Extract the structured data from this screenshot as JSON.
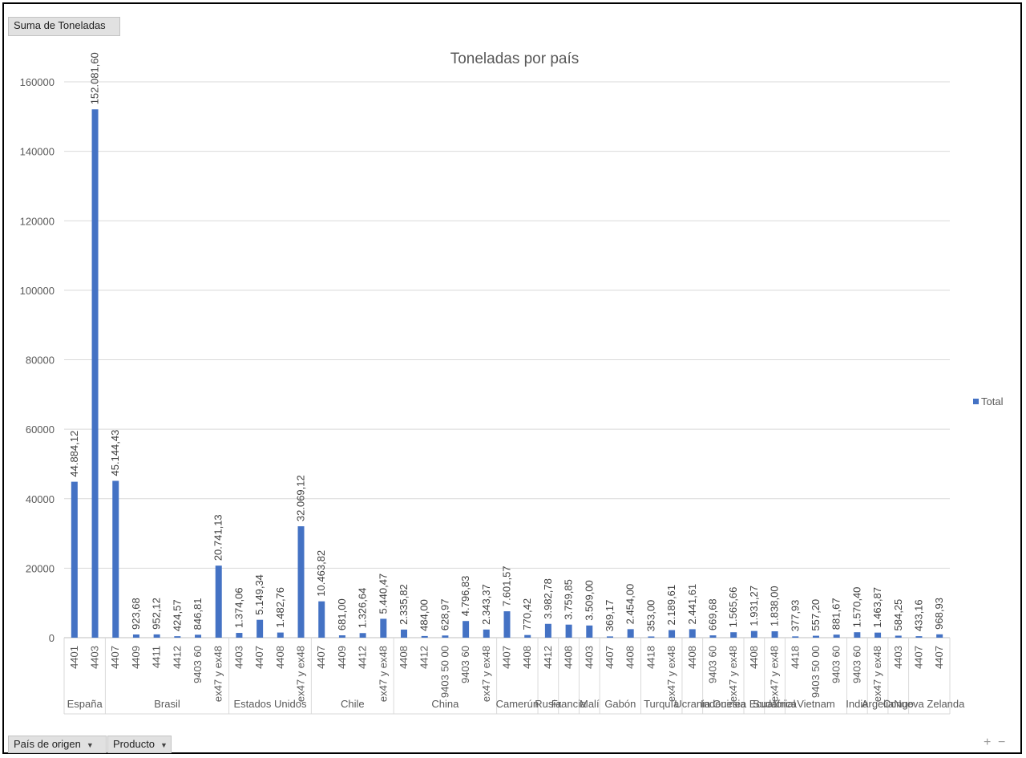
{
  "value_field_button": "Suma de Toneladas",
  "axis_field_buttons": [
    "País de origen",
    "Producto"
  ],
  "zoom_controls": {
    "plus": "+",
    "minus": "−"
  },
  "colors": {
    "bar": "#4472c4",
    "grid": "#d9d9d9",
    "text": "#595959"
  },
  "chart_data": {
    "type": "bar",
    "title": "Toneladas por país",
    "xlabel": "",
    "ylabel": "",
    "ylim": [
      0,
      160000
    ],
    "yticks": [
      0,
      20000,
      40000,
      60000,
      80000,
      100000,
      120000,
      140000,
      160000
    ],
    "grid": true,
    "legend": {
      "position": "right",
      "entries": [
        "Total"
      ]
    },
    "groups": [
      {
        "name": "España",
        "items": [
          {
            "product": "4401",
            "value": 44884.12,
            "label": "44.884,12"
          },
          {
            "product": "4403",
            "value": 152081.6,
            "label": "152.081,60"
          }
        ]
      },
      {
        "name": "Brasil",
        "items": [
          {
            "product": "4407",
            "value": 45144.43,
            "label": "45.144,43"
          },
          {
            "product": "4409",
            "value": 923.68,
            "label": "923,68"
          },
          {
            "product": "4411",
            "value": 952.12,
            "label": "952,12"
          },
          {
            "product": "4412",
            "value": 424.57,
            "label": "424,57"
          },
          {
            "product": "9403 60",
            "value": 846.81,
            "label": "846,81"
          },
          {
            "product": "ex47 y ex48",
            "value": 20741.13,
            "label": "20.741,13"
          }
        ]
      },
      {
        "name": "Estados Unidos",
        "items": [
          {
            "product": "4403",
            "value": 1374.06,
            "label": "1.374,06"
          },
          {
            "product": "4407",
            "value": 5149.34,
            "label": "5.149,34"
          },
          {
            "product": "4408",
            "value": 1482.76,
            "label": "1.482,76"
          },
          {
            "product": "ex47 y ex48",
            "value": 32069.12,
            "label": "32.069,12"
          }
        ]
      },
      {
        "name": "Chile",
        "items": [
          {
            "product": "4407",
            "value": 10463.82,
            "label": "10.463,82"
          },
          {
            "product": "4409",
            "value": 681.0,
            "label": "681,00"
          },
          {
            "product": "4412",
            "value": 1326.64,
            "label": "1.326,64"
          },
          {
            "product": "ex47 y ex48",
            "value": 5440.47,
            "label": "5.440,47"
          }
        ]
      },
      {
        "name": "China",
        "items": [
          {
            "product": "4408",
            "value": 2335.82,
            "label": "2.335,82"
          },
          {
            "product": "4412",
            "value": 484.0,
            "label": "484,00"
          },
          {
            "product": "9403 50 00",
            "value": 628.97,
            "label": "628,97"
          },
          {
            "product": "9403 60",
            "value": 4796.83,
            "label": "4.796,83"
          },
          {
            "product": "ex47 y ex48",
            "value": 2343.37,
            "label": "2.343,37"
          }
        ]
      },
      {
        "name": "Camerún",
        "items": [
          {
            "product": "4407",
            "value": 7601.57,
            "label": "7.601,57"
          },
          {
            "product": "4408",
            "value": 770.42,
            "label": "770,42"
          }
        ]
      },
      {
        "name": "Rusia",
        "items": [
          {
            "product": "4412",
            "value": 3982.78,
            "label": "3.982,78"
          }
        ]
      },
      {
        "name": "Francia",
        "items": [
          {
            "product": "4408",
            "value": 3759.85,
            "label": "3.759,85"
          }
        ]
      },
      {
        "name": "Malí",
        "items": [
          {
            "product": "4403",
            "value": 3509.0,
            "label": "3.509,00"
          }
        ]
      },
      {
        "name": "Gabón",
        "items": [
          {
            "product": "4407",
            "value": 369.17,
            "label": "369,17"
          },
          {
            "product": "4408",
            "value": 2454.0,
            "label": "2.454,00"
          }
        ]
      },
      {
        "name": "Turquía",
        "items": [
          {
            "product": "4418",
            "value": 353.0,
            "label": "353,00"
          },
          {
            "product": "ex47 y ex48",
            "value": 2189.61,
            "label": "2.189,61"
          }
        ]
      },
      {
        "name": "Ucrania",
        "items": [
          {
            "product": "4408",
            "value": 2441.61,
            "label": "2.441,61"
          }
        ]
      },
      {
        "name": "Indonesia",
        "items": [
          {
            "product": "9403 60",
            "value": 669.68,
            "label": "669,68"
          },
          {
            "product": "ex47 y ex48",
            "value": 1565.66,
            "label": "1.565,66"
          }
        ]
      },
      {
        "name": "Guinea Ecuatorial",
        "items": [
          {
            "product": "4408",
            "value": 1931.27,
            "label": "1.931,27"
          }
        ]
      },
      {
        "name": "Sudáfrica",
        "items": [
          {
            "product": "ex47 y ex48",
            "value": 1838.0,
            "label": "1.838,00"
          }
        ]
      },
      {
        "name": "Vietnam",
        "items": [
          {
            "product": "4418",
            "value": 377.93,
            "label": "377,93"
          },
          {
            "product": "9403 50 00",
            "value": 557.2,
            "label": "557,20"
          },
          {
            "product": "9403 60",
            "value": 881.67,
            "label": "881,67"
          }
        ]
      },
      {
        "name": "India",
        "items": [
          {
            "product": "9403 60",
            "value": 1570.4,
            "label": "1.570,40"
          }
        ]
      },
      {
        "name": "Argelia",
        "items": [
          {
            "product": "ex47 y ex48",
            "value": 1463.87,
            "label": "1.463,87"
          }
        ]
      },
      {
        "name": "Congo",
        "items": [
          {
            "product": "4403",
            "value": 584.25,
            "label": "584,25"
          }
        ]
      },
      {
        "name": "Nueva Zelanda",
        "items": [
          {
            "product": "4407",
            "value": 433.16,
            "label": "433,16"
          },
          {
            "product": "4407",
            "value": 968.93,
            "label": "968,93"
          }
        ]
      }
    ]
  }
}
